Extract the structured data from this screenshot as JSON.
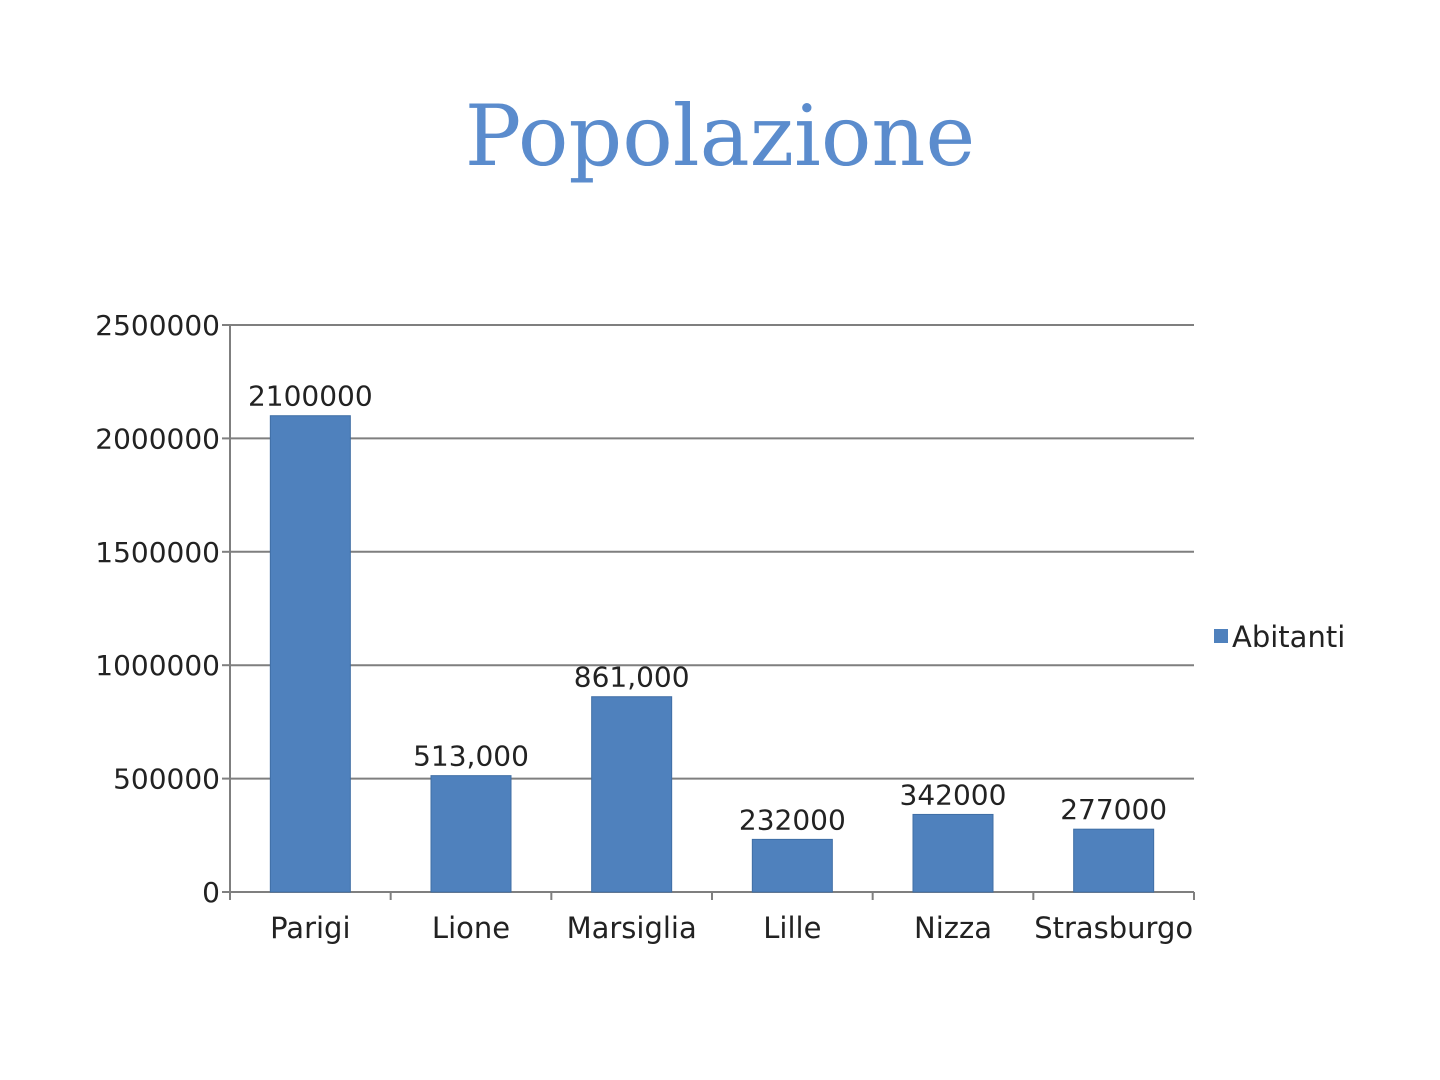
{
  "slide": {
    "title": "Popolazione"
  },
  "colors": {
    "title": "#5b8ccd",
    "bar": "#4f81bd",
    "bar_edge": "#3f6ea5",
    "grid": "#7f7f7f",
    "axis": "#7f7f7f",
    "text": "#222222"
  },
  "chart_data": {
    "type": "bar",
    "title": "",
    "xlabel": "",
    "ylabel": "",
    "categories": [
      "Parigi",
      "Lione",
      "Marsiglia",
      "Lille",
      "Nizza",
      "Strasburgo"
    ],
    "series": [
      {
        "name": "Abitanti",
        "values": [
          2100000,
          513000,
          861000,
          232000,
          342000,
          277000
        ],
        "labels": [
          "2100000",
          "513,000",
          "861,000",
          "232000",
          "342000",
          "277000"
        ]
      }
    ],
    "ylim": [
      0,
      2500000
    ],
    "yticks": [
      0,
      500000,
      1000000,
      1500000,
      2000000,
      2500000
    ],
    "ytick_labels": [
      "0",
      "500000",
      "1000000",
      "1500000",
      "2000000",
      "2500000"
    ],
    "grid": true,
    "legend": "right"
  }
}
